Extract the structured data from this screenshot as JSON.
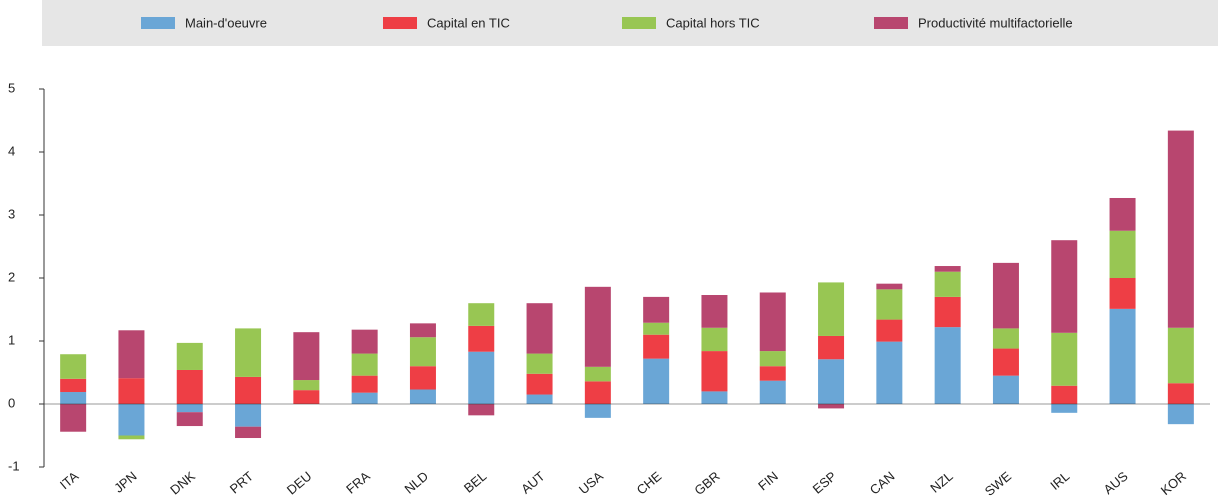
{
  "chart_data": {
    "type": "stacked_bar",
    "categories": [
      "ITA",
      "JPN",
      "DNK",
      "PRT",
      "DEU",
      "FRA",
      "NLD",
      "BEL",
      "AUT",
      "USA",
      "CHE",
      "GBR",
      "FIN",
      "ESP",
      "CAN",
      "NZL",
      "SWE",
      "IRL",
      "AUS",
      "KOR"
    ],
    "series": [
      {
        "name": "Main-d'oeuvre",
        "color": "#6aa6d6",
        "values": [
          0.19,
          -0.5,
          -0.13,
          -0.36,
          0,
          0.18,
          0.23,
          0.83,
          0.15,
          -0.22,
          0.72,
          0.2,
          0.37,
          0.71,
          0.99,
          1.22,
          0.45,
          -0.14,
          1.51,
          -0.32
        ]
      },
      {
        "name": "Capital en TIC",
        "color": "#ee3e45",
        "values": [
          0.21,
          0.41,
          0.54,
          0.43,
          0.22,
          0.27,
          0.37,
          0.41,
          0.33,
          0.36,
          0.38,
          0.64,
          0.23,
          0.37,
          0.35,
          0.48,
          0.43,
          0.29,
          0.49,
          0.33
        ]
      },
      {
        "name": "Capital hors TIC",
        "color": "#98c653",
        "values": [
          0.39,
          -0.06,
          0.43,
          0.77,
          0.16,
          0.35,
          0.46,
          0.36,
          0.32,
          0.23,
          0.19,
          0.37,
          0.24,
          0.85,
          0.48,
          0.4,
          0.32,
          0.84,
          0.75,
          0.88
        ]
      },
      {
        "name": "Productivité multifactorielle",
        "color": "#b8466f",
        "values": [
          -0.44,
          0.76,
          -0.22,
          -0.18,
          0.76,
          0.38,
          0.22,
          -0.18,
          0.8,
          1.27,
          0.41,
          0.52,
          0.93,
          -0.07,
          0.09,
          0.09,
          1.04,
          1.47,
          0.52,
          3.13
        ]
      }
    ],
    "ylim": [
      -1,
      5
    ],
    "yticks": [
      -1,
      0,
      1,
      2,
      3,
      4,
      5
    ],
    "legend": "top"
  }
}
